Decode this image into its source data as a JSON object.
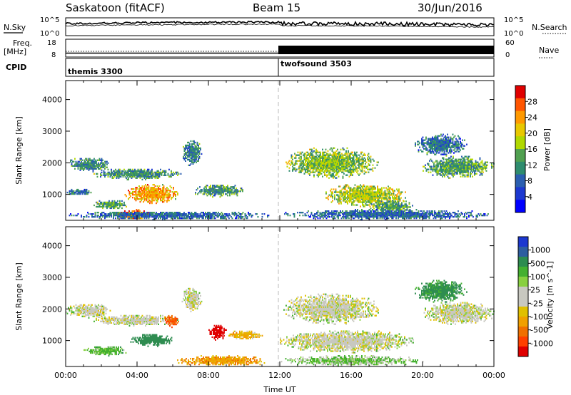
{
  "header": {
    "station": "Saskatoon (fitACF)",
    "beam": "Beam 15",
    "date": "30/Jun/2016"
  },
  "noise_panel": {
    "left_label": "N.Sky",
    "right_label": "N.Search",
    "left_ticks": [
      "10^5",
      "10^0"
    ],
    "right_ticks": [
      "10^5",
      "10^0"
    ]
  },
  "freq_panel": {
    "left_label_1": "Freq.",
    "left_label_2": "[MHz]",
    "right_label": "Nave",
    "left_ticks": [
      "18",
      "8"
    ],
    "right_ticks": [
      "60",
      "0"
    ]
  },
  "cpid_panel": {
    "label": "CPID",
    "modes": [
      {
        "name": "themis 3300",
        "start_hour": 0
      },
      {
        "name": "twofsound 3503",
        "start_hour": 12
      }
    ]
  },
  "chart_data": [
    {
      "type": "heatmap",
      "parameter": "Power",
      "ylabel": "Slant Range [km]",
      "ylim": [
        180,
        4600
      ],
      "yticks": [
        1000,
        2000,
        3000,
        4000
      ],
      "xlim": [
        0,
        24
      ],
      "colorbar_label": "Power [dB]",
      "colorbar_ticks": [
        "28",
        "24",
        "20",
        "16",
        "12",
        "8",
        "4"
      ],
      "colorbar_colors": [
        "#e00000",
        "#ff5500",
        "#ff9900",
        "#e8c800",
        "#b0d800",
        "#50a050",
        "#2e8c6e",
        "#2a5eb0",
        "#1c38d0",
        "#0000ff"
      ],
      "features": [
        {
          "t": [
            0.0,
            2.5
          ],
          "r": [
            1700,
            2150
          ],
          "level": 10
        },
        {
          "t": [
            1.5,
            6.5
          ],
          "r": [
            1450,
            1800
          ],
          "level": 11
        },
        {
          "t": [
            6.5,
            7.6
          ],
          "r": [
            1900,
            2700
          ],
          "level": 9
        },
        {
          "t": [
            3.3,
            6.3
          ],
          "r": [
            700,
            1300
          ],
          "level": 22
        },
        {
          "t": [
            1.5,
            3.5
          ],
          "r": [
            500,
            800
          ],
          "level": 12
        },
        {
          "t": [
            2.8,
            4.8
          ],
          "r": [
            180,
            500
          ],
          "level": 24
        },
        {
          "t": [
            0.0,
            11.5
          ],
          "r": [
            180,
            450
          ],
          "level": 7
        },
        {
          "t": [
            0.0,
            1.5
          ],
          "r": [
            950,
            1150
          ],
          "level": 8
        },
        {
          "t": [
            7.0,
            10.0
          ],
          "r": [
            900,
            1300
          ],
          "level": 11
        },
        {
          "t": [
            12.2,
            17.5
          ],
          "r": [
            1500,
            2450
          ],
          "level": 15
        },
        {
          "t": [
            14.5,
            19.0
          ],
          "r": [
            600,
            1300
          ],
          "level": 17
        },
        {
          "t": [
            17.0,
            19.5
          ],
          "r": [
            400,
            800
          ],
          "level": 12
        },
        {
          "t": [
            20.0,
            24.0
          ],
          "r": [
            1500,
            2200
          ],
          "level": 12
        },
        {
          "t": [
            19.5,
            22.5
          ],
          "r": [
            2200,
            2900
          ],
          "level": 8
        },
        {
          "t": [
            12.0,
            24.0
          ],
          "r": [
            180,
            500
          ],
          "level": 7
        }
      ]
    },
    {
      "type": "heatmap",
      "parameter": "Velocity",
      "ylabel": "Slant Range [km]",
      "xlabel": "Time UT",
      "ylim": [
        180,
        4600
      ],
      "yticks": [
        1000,
        2000,
        3000,
        4000
      ],
      "xlim": [
        0,
        24
      ],
      "xticks": [
        "00:00",
        "04:00",
        "08:00",
        "12:00",
        "16:00",
        "20:00",
        "00:00"
      ],
      "colorbar_label": "Velocity [m s^-1]",
      "colorbar_ticks": [
        "1000",
        "500",
        "100",
        "25",
        "-25",
        "-100",
        "-500",
        "-1000"
      ],
      "colorbar_colors": [
        "#1c38d0",
        "#2e5ea0",
        "#2e8c50",
        "#44b030",
        "#88d040",
        "#c8c8c0",
        "#c8c8c0",
        "#e0c000",
        "#f0a000",
        "#f07000",
        "#ff4000",
        "#e00000"
      ],
      "features": [
        {
          "t": [
            0.0,
            2.5
          ],
          "r": [
            1700,
            2150
          ],
          "v": 0
        },
        {
          "t": [
            1.5,
            6.5
          ],
          "r": [
            1450,
            1800
          ],
          "v": 0
        },
        {
          "t": [
            6.5,
            7.6
          ],
          "r": [
            1900,
            2700
          ],
          "v": 0
        },
        {
          "t": [
            3.5,
            6.0
          ],
          "r": [
            800,
            1200
          ],
          "v": 150
        },
        {
          "t": [
            5.5,
            6.3
          ],
          "r": [
            1400,
            1800
          ],
          "v": -300
        },
        {
          "t": [
            1.0,
            3.5
          ],
          "r": [
            500,
            800
          ],
          "v": 60
        },
        {
          "t": [
            6.0,
            11.5
          ],
          "r": [
            180,
            500
          ],
          "v": -80
        },
        {
          "t": [
            8.0,
            9.0
          ],
          "r": [
            1000,
            1500
          ],
          "v": -700
        },
        {
          "t": [
            9.0,
            11.0
          ],
          "r": [
            1000,
            1300
          ],
          "v": -60
        },
        {
          "t": [
            12.2,
            17.5
          ],
          "r": [
            1500,
            2450
          ],
          "v": 0
        },
        {
          "t": [
            12.0,
            19.5
          ],
          "r": [
            600,
            1300
          ],
          "v": 0
        },
        {
          "t": [
            19.5,
            22.5
          ],
          "r": [
            2200,
            2900
          ],
          "v": 120
        },
        {
          "t": [
            20.0,
            24.0
          ],
          "r": [
            1500,
            2200
          ],
          "v": 0
        },
        {
          "t": [
            12.0,
            20.0
          ],
          "r": [
            180,
            500
          ],
          "v": 40
        }
      ]
    }
  ]
}
